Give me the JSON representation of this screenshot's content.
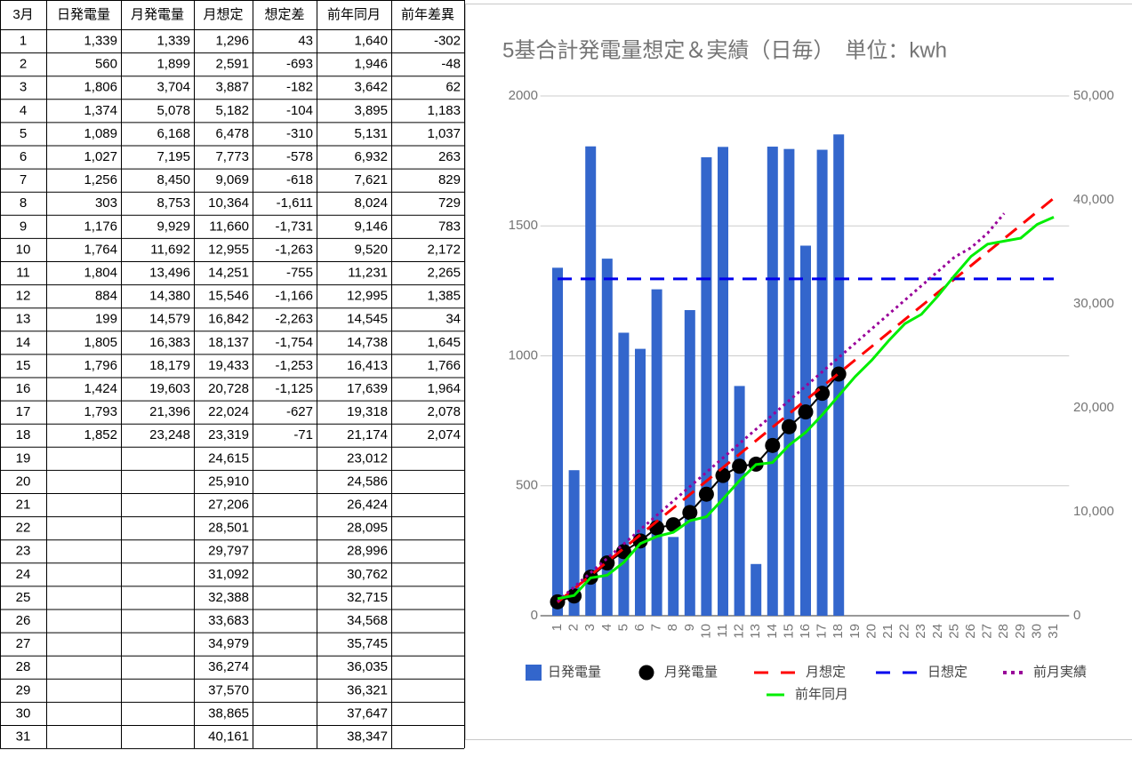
{
  "table": {
    "header": [
      "3月",
      "日発電量",
      "月発電量",
      "月想定",
      "想定差",
      "前年同月",
      "前年差異"
    ],
    "rows": [
      [
        "1",
        "1,339",
        "1,339",
        "1,296",
        "43",
        "1,640",
        "-302"
      ],
      [
        "2",
        "560",
        "1,899",
        "2,591",
        "-693",
        "1,946",
        "-48"
      ],
      [
        "3",
        "1,806",
        "3,704",
        "3,887",
        "-182",
        "3,642",
        "62"
      ],
      [
        "4",
        "1,374",
        "5,078",
        "5,182",
        "-104",
        "3,895",
        "1,183"
      ],
      [
        "5",
        "1,089",
        "6,168",
        "6,478",
        "-310",
        "5,131",
        "1,037"
      ],
      [
        "6",
        "1,027",
        "7,195",
        "7,773",
        "-578",
        "6,932",
        "263"
      ],
      [
        "7",
        "1,256",
        "8,450",
        "9,069",
        "-618",
        "7,621",
        "829"
      ],
      [
        "8",
        "303",
        "8,753",
        "10,364",
        "-1,611",
        "8,024",
        "729"
      ],
      [
        "9",
        "1,176",
        "9,929",
        "11,660",
        "-1,731",
        "9,146",
        "783"
      ],
      [
        "10",
        "1,764",
        "11,692",
        "12,955",
        "-1,263",
        "9,520",
        "2,172"
      ],
      [
        "11",
        "1,804",
        "13,496",
        "14,251",
        "-755",
        "11,231",
        "2,265"
      ],
      [
        "12",
        "884",
        "14,380",
        "15,546",
        "-1,166",
        "12,995",
        "1,385"
      ],
      [
        "13",
        "199",
        "14,579",
        "16,842",
        "-2,263",
        "14,545",
        "34"
      ],
      [
        "14",
        "1,805",
        "16,383",
        "18,137",
        "-1,754",
        "14,738",
        "1,645"
      ],
      [
        "15",
        "1,796",
        "18,179",
        "19,433",
        "-1,253",
        "16,413",
        "1,766"
      ],
      [
        "16",
        "1,424",
        "19,603",
        "20,728",
        "-1,125",
        "17,639",
        "1,964"
      ],
      [
        "17",
        "1,793",
        "21,396",
        "22,024",
        "-627",
        "19,318",
        "2,078"
      ],
      [
        "18",
        "1,852",
        "23,248",
        "23,319",
        "-71",
        "21,174",
        "2,074"
      ],
      [
        "19",
        null,
        null,
        "24,615",
        null,
        "23,012",
        null
      ],
      [
        "20",
        null,
        null,
        "25,910",
        null,
        "24,586",
        null
      ],
      [
        "21",
        null,
        null,
        "27,206",
        null,
        "26,424",
        null
      ],
      [
        "22",
        null,
        null,
        "28,501",
        null,
        "28,095",
        null
      ],
      [
        "23",
        null,
        null,
        "29,797",
        null,
        "28,996",
        null
      ],
      [
        "24",
        null,
        null,
        "31,092",
        null,
        "30,762",
        null
      ],
      [
        "25",
        null,
        null,
        "32,388",
        null,
        "32,715",
        null
      ],
      [
        "26",
        null,
        null,
        "33,683",
        null,
        "34,568",
        null
      ],
      [
        "27",
        null,
        null,
        "34,979",
        null,
        "35,745",
        null
      ],
      [
        "28",
        null,
        null,
        "36,274",
        null,
        "36,035",
        null
      ],
      [
        "29",
        null,
        null,
        "37,570",
        null,
        "36,321",
        null
      ],
      [
        "30",
        null,
        null,
        "38,865",
        null,
        "37,647",
        null
      ],
      [
        "31",
        null,
        null,
        "40,161",
        null,
        "38,347",
        null
      ]
    ],
    "positive_color": "#ff0000",
    "negative_color": "#0000ff"
  },
  "chart_data": {
    "type": "combo",
    "title": "5基合計発電量想定＆実績（日毎）　単位：kwh",
    "categories": [
      "1",
      "2",
      "3",
      "4",
      "5",
      "6",
      "7",
      "8",
      "9",
      "10",
      "11",
      "12",
      "13",
      "14",
      "15",
      "16",
      "17",
      "18",
      "19",
      "20",
      "21",
      "22",
      "23",
      "24",
      "25",
      "26",
      "27",
      "28",
      "29",
      "30",
      "31"
    ],
    "ylim": [
      0,
      2000
    ],
    "yticks": [
      0,
      500,
      1000,
      1500,
      2000
    ],
    "y2lim": [
      0,
      50000
    ],
    "y2ticks": [
      0,
      {
        "value": 10000,
        "label": "10,000"
      },
      {
        "value": 20000,
        "label": "20,000"
      },
      {
        "value": 30000,
        "label": "30,000"
      },
      {
        "value": 40000,
        "label": "40,000"
      },
      {
        "value": 50000,
        "label": "50,000"
      }
    ],
    "grid": true,
    "legend": "bottom",
    "series": [
      {
        "name": "日発電量",
        "type": "bar",
        "color": "#3366cc",
        "values": [
          1339,
          560,
          1806,
          1374,
          1089,
          1027,
          1256,
          303,
          1176,
          1764,
          1804,
          884,
          199,
          1805,
          1796,
          1424,
          1793,
          1852,
          null,
          null,
          null,
          null,
          null,
          null,
          null,
          null,
          null,
          null,
          null,
          null,
          null
        ]
      },
      {
        "name": "月発電量",
        "type": "line",
        "marker": "circle",
        "axis": "y2",
        "color": "#000000",
        "values": [
          1339,
          1899,
          3704,
          5078,
          6168,
          7195,
          8450,
          8753,
          9929,
          11692,
          13496,
          14380,
          14579,
          16383,
          18179,
          19603,
          21396,
          23248,
          null,
          null,
          null,
          null,
          null,
          null,
          null,
          null,
          null,
          null,
          null,
          null,
          null
        ]
      },
      {
        "name": "月想定",
        "type": "line",
        "dash": "dashed",
        "axis": "y2",
        "color": "#ff0000",
        "values": [
          1296,
          2591,
          3887,
          5182,
          6478,
          7773,
          9069,
          10364,
          11660,
          12955,
          14251,
          15546,
          16842,
          18137,
          19433,
          20728,
          22024,
          23319,
          24615,
          25910,
          27206,
          28501,
          29797,
          31092,
          32388,
          33683,
          34979,
          36274,
          37570,
          38865,
          40161
        ]
      },
      {
        "name": "日想定",
        "type": "line",
        "dash": "dashed",
        "color": "#0000ee",
        "values": [
          1296,
          1296,
          1296,
          1296,
          1296,
          1296,
          1296,
          1296,
          1296,
          1296,
          1296,
          1296,
          1296,
          1296,
          1296,
          1296,
          1296,
          1296,
          1296,
          1296,
          1296,
          1296,
          1296,
          1296,
          1296,
          1296,
          1296,
          1296,
          1296,
          1296,
          1296
        ]
      },
      {
        "name": "前月実績",
        "type": "line",
        "dash": "dotted",
        "axis": "y2",
        "color": "#990099",
        "values": [
          1380,
          2760,
          4140,
          5520,
          6900,
          8280,
          9660,
          11040,
          12420,
          13800,
          15180,
          16560,
          17940,
          19320,
          20700,
          22080,
          23460,
          24840,
          26220,
          27600,
          28980,
          30360,
          31740,
          33120,
          34500,
          35400,
          36800,
          38700,
          null,
          null,
          null
        ]
      },
      {
        "name": "前年同月",
        "type": "line",
        "axis": "y2",
        "color": "#00ee00",
        "values": [
          1640,
          1946,
          3642,
          3895,
          5131,
          6932,
          7621,
          8024,
          9146,
          9520,
          11231,
          12995,
          14545,
          14738,
          16413,
          17639,
          19318,
          21174,
          23012,
          24586,
          26424,
          28095,
          28996,
          30762,
          32715,
          34568,
          35745,
          36035,
          36321,
          37647,
          38347
        ]
      }
    ]
  }
}
